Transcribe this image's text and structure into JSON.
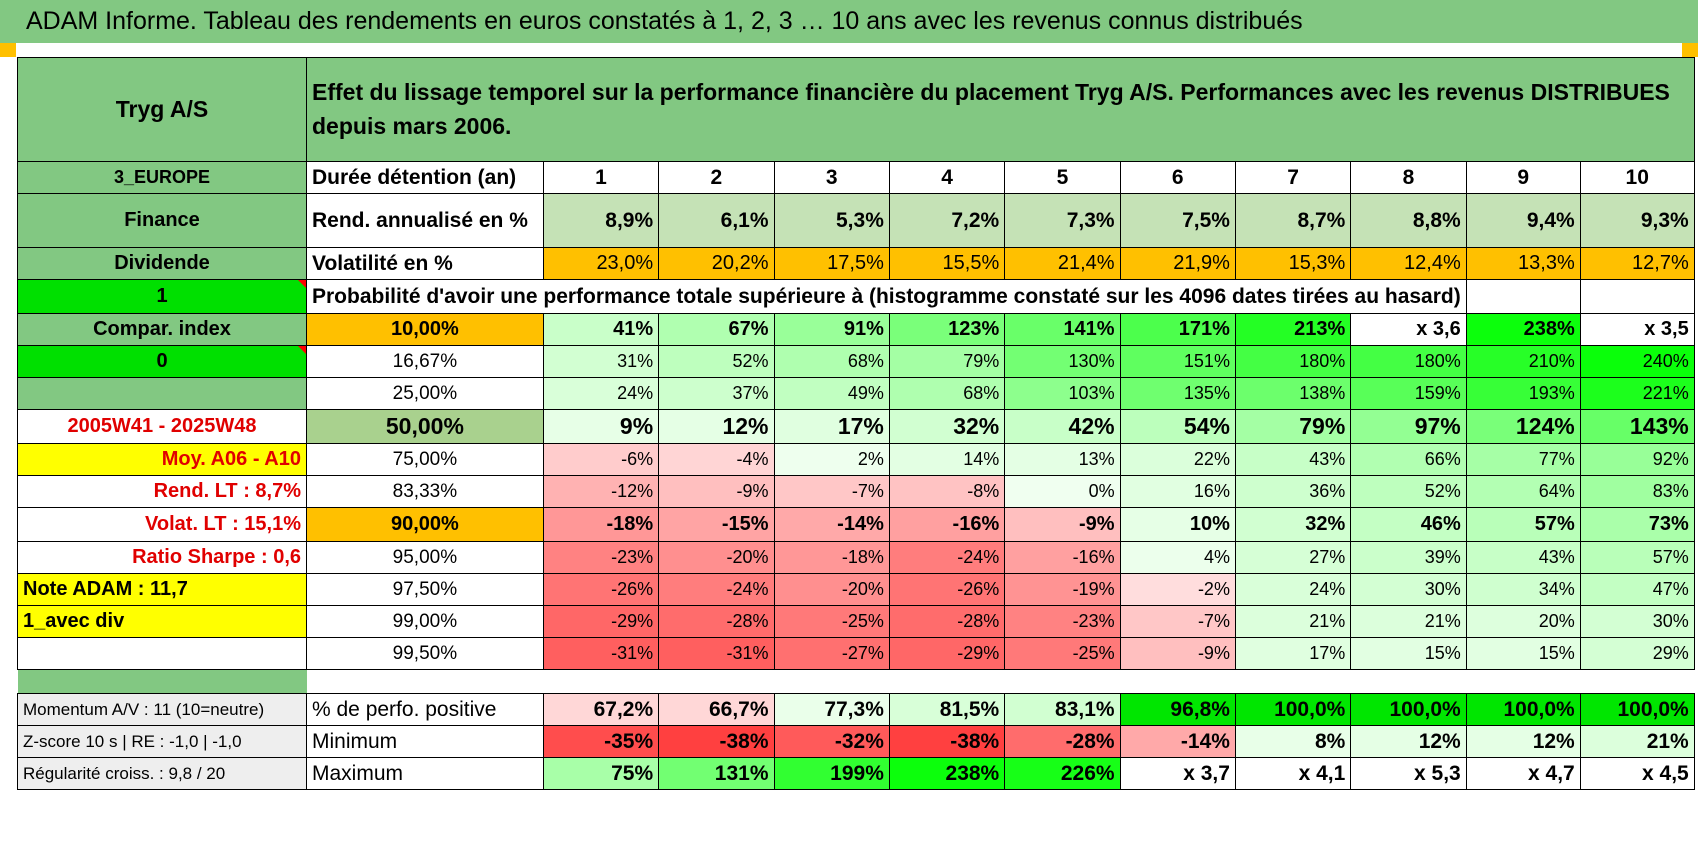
{
  "banner": "ADAM Informe. Tableau des rendements en euros constatés à 1, 2, 3 … 10 ans avec les revenus connus distribués",
  "header": {
    "stock": "Tryg A/S",
    "description": "Effet du lissage temporel sur la performance financière du placement Tryg A/S. Performances avec les revenus DISTRIBUES depuis mars 2006."
  },
  "years": [
    "1",
    "2",
    "3",
    "4",
    "5",
    "6",
    "7",
    "8",
    "9",
    "10"
  ],
  "side": {
    "region": "3_EUROPE",
    "sector": "Finance",
    "type": "Dividende",
    "flag1": "1",
    "compar": "Compar. index",
    "flag0": "0",
    "period": "2005W41 - 2025W48",
    "moy": "Moy. A06 - A10",
    "rend_lt": "Rend. LT :   8,7%",
    "volat_lt": "Volat. LT :   15,1%",
    "sharpe": "Ratio Sharpe :    0,6",
    "note": "Note ADAM : 11,7",
    "div": "1_avec div"
  },
  "rows_top": {
    "duree_label": "Durée détention (an)",
    "rend_label": "Rend. annualisé en %",
    "rend": [
      "8,9%",
      "6,1%",
      "5,3%",
      "7,2%",
      "7,3%",
      "7,5%",
      "8,7%",
      "8,8%",
      "9,4%",
      "9,3%"
    ],
    "vol_label": "Volatilité en %",
    "vol": [
      "23,0%",
      "20,2%",
      "17,5%",
      "15,5%",
      "21,4%",
      "21,9%",
      "15,3%",
      "12,4%",
      "13,3%",
      "12,7%"
    ],
    "prob_label": "Probabilité d'avoir une performance totale supérieure à (histogramme constaté sur les 4096 dates tirées au hasard)"
  },
  "quantiles": [
    {
      "p": "10,00%",
      "v": [
        "41%",
        "67%",
        "91%",
        "123%",
        "141%",
        "171%",
        "213%",
        "x 3,6",
        "238%",
        "x 3,5"
      ]
    },
    {
      "p": "16,67%",
      "v": [
        "31%",
        "52%",
        "68%",
        "79%",
        "130%",
        "151%",
        "180%",
        "180%",
        "210%",
        "240%"
      ]
    },
    {
      "p": "25,00%",
      "v": [
        "24%",
        "37%",
        "49%",
        "68%",
        "103%",
        "135%",
        "138%",
        "159%",
        "193%",
        "221%"
      ]
    },
    {
      "p": "50,00%",
      "v": [
        "9%",
        "12%",
        "17%",
        "32%",
        "42%",
        "54%",
        "79%",
        "97%",
        "124%",
        "143%"
      ]
    },
    {
      "p": "75,00%",
      "v": [
        "-6%",
        "-4%",
        "2%",
        "14%",
        "13%",
        "22%",
        "43%",
        "66%",
        "77%",
        "92%"
      ]
    },
    {
      "p": "83,33%",
      "v": [
        "-12%",
        "-9%",
        "-7%",
        "-8%",
        "0%",
        "16%",
        "36%",
        "52%",
        "64%",
        "83%"
      ]
    },
    {
      "p": "90,00%",
      "v": [
        "-18%",
        "-15%",
        "-14%",
        "-16%",
        "-9%",
        "10%",
        "32%",
        "46%",
        "57%",
        "73%"
      ]
    },
    {
      "p": "95,00%",
      "v": [
        "-23%",
        "-20%",
        "-18%",
        "-24%",
        "-16%",
        "4%",
        "27%",
        "39%",
        "43%",
        "57%"
      ]
    },
    {
      "p": "97,50%",
      "v": [
        "-26%",
        "-24%",
        "-20%",
        "-26%",
        "-19%",
        "-2%",
        "24%",
        "30%",
        "34%",
        "47%"
      ]
    },
    {
      "p": "99,00%",
      "v": [
        "-29%",
        "-28%",
        "-25%",
        "-28%",
        "-23%",
        "-7%",
        "21%",
        "21%",
        "20%",
        "30%"
      ]
    },
    {
      "p": "99,50%",
      "v": [
        "-31%",
        "-31%",
        "-27%",
        "-29%",
        "-25%",
        "-9%",
        "17%",
        "15%",
        "15%",
        "29%"
      ]
    }
  ],
  "bottom": [
    {
      "side": "Momentum A/V : 11 (10=neutre)",
      "label": "% de perfo. positive",
      "v": [
        "67,2%",
        "66,7%",
        "77,3%",
        "81,5%",
        "83,1%",
        "96,8%",
        "100,0%",
        "100,0%",
        "100,0%",
        "100,0%"
      ]
    },
    {
      "side": "Z-score 10 s | RE : -1,0 | -1,0",
      "label": "Minimum",
      "v": [
        "-35%",
        "-38%",
        "-32%",
        "-38%",
        "-28%",
        "-14%",
        "8%",
        "12%",
        "12%",
        "21%"
      ]
    },
    {
      "side": "Régularité croiss. : 9,8 / 20",
      "label": "Maximum",
      "v": [
        "75%",
        "131%",
        "199%",
        "238%",
        "226%",
        "x 3,7",
        "x 4,1",
        "x 5,3",
        "x 4,7",
        "x 4,5"
      ]
    }
  ]
}
